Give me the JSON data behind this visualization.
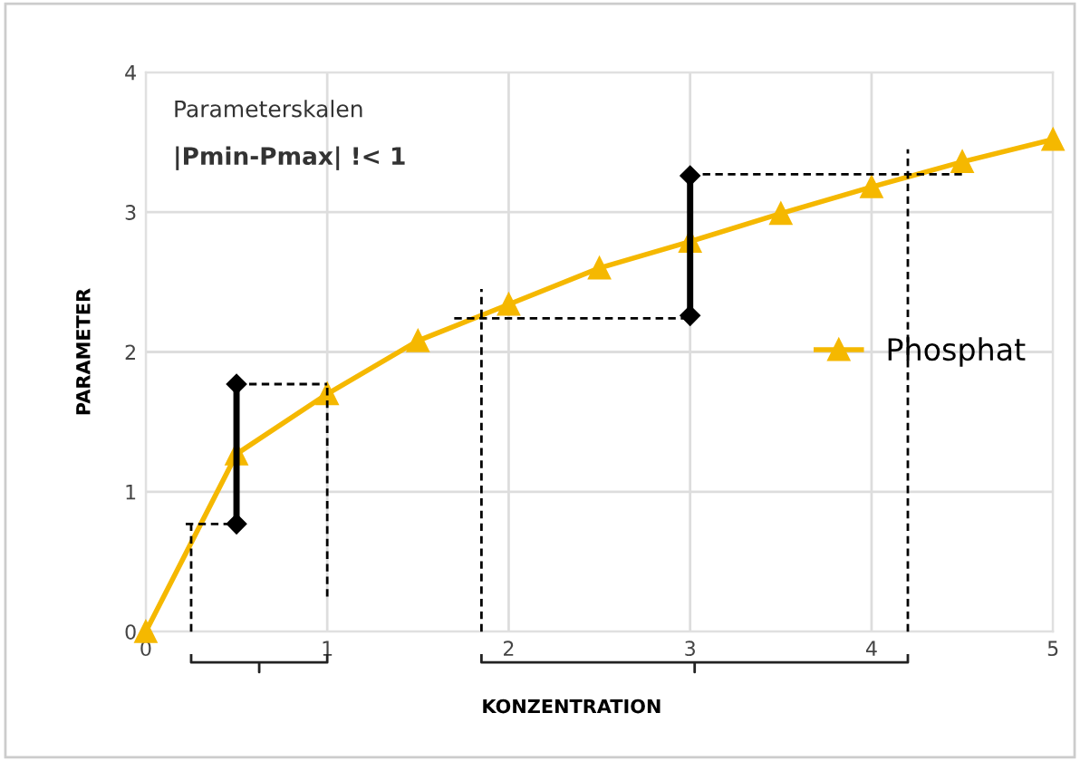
{
  "chart_data": {
    "type": "line",
    "xlabel": "KONZENTRATION",
    "ylabel": "PARAMETER",
    "x": [
      0,
      0.5,
      1,
      1.5,
      2,
      2.5,
      3,
      3.5,
      4,
      4.5,
      5
    ],
    "series": [
      {
        "name": "Phosphat",
        "color": "#f5b800",
        "marker": "triangle",
        "values": [
          0,
          1.27,
          1.7,
          2.08,
          2.34,
          2.6,
          2.79,
          2.99,
          3.18,
          3.36,
          3.52
        ]
      },
      {
        "color": "#000000",
        "marker": "diamond",
        "x": [
          0.5,
          0.5
        ],
        "values": [
          0.77,
          1.77
        ]
      },
      {
        "color": "#000000",
        "marker": "diamond",
        "x": [
          3,
          3
        ],
        "values": [
          2.26,
          3.26
        ]
      },
      {
        "color": "#000000",
        "marker": "none",
        "line_style": "dashed",
        "x": [
          0.22,
          0.5
        ],
        "values": [
          0.77,
          0.77
        ]
      },
      {
        "color": "#000000",
        "marker": "none",
        "line_style": "dashed",
        "x": [
          0.5,
          1.0
        ],
        "values": [
          1.77,
          1.77
        ]
      },
      {
        "color": "#000000",
        "marker": "none",
        "line_style": "dashed",
        "x": [
          1.7,
          3
        ],
        "values": [
          2.24,
          2.24
        ]
      },
      {
        "color": "#000000",
        "marker": "none",
        "line_style": "dashed",
        "x": [
          3,
          4.5
        ],
        "values": [
          3.27,
          3.27
        ]
      },
      {
        "color": "#000000",
        "marker": "none",
        "line_style": "dashed",
        "x": [
          0.25,
          0.25
        ],
        "values": [
          0,
          0.8
        ]
      },
      {
        "color": "#000000",
        "marker": "none",
        "line_style": "dashed",
        "x": [
          1.0,
          1.0
        ],
        "values": [
          0.25,
          1.77
        ]
      },
      {
        "color": "#000000",
        "marker": "none",
        "line_style": "dashed",
        "x": [
          1.85,
          1.85
        ],
        "values": [
          0,
          2.45
        ]
      },
      {
        "color": "#000000",
        "marker": "none",
        "line_style": "dashed",
        "x": [
          4.2,
          4.2
        ],
        "values": [
          0,
          3.45
        ]
      }
    ],
    "annotations": [
      "Parameterskalen",
      "|Pmin-Pmax| !< 1"
    ],
    "xlim": [
      0,
      5
    ],
    "ylim": [
      0,
      4
    ],
    "xticks": [
      0,
      1,
      2,
      3,
      4,
      5
    ],
    "yticks": [
      0,
      1,
      2,
      3,
      4
    ],
    "grid": true,
    "legend": "center right"
  }
}
